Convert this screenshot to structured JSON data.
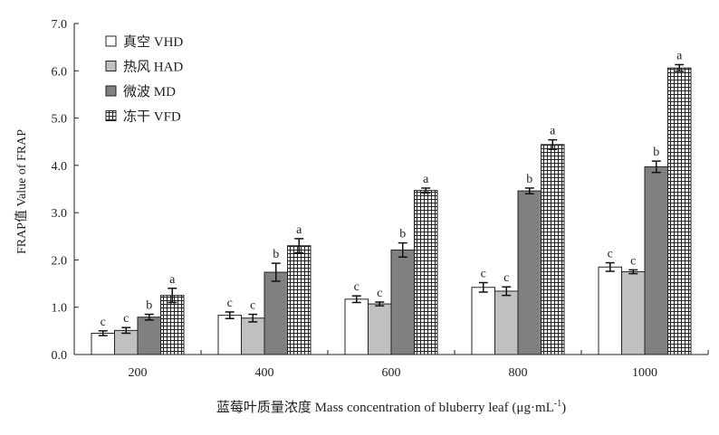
{
  "chart_data": {
    "type": "bar",
    "ylabel": "FRAP值 Value of FRAP",
    "xlabel": "蓝莓叶质量浓度 Mass concentration of bluberry leaf (μg·mL",
    "xlabel_sup": "-1",
    "xlabel_end": ")",
    "categories": [
      "200",
      "400",
      "600",
      "800",
      "1000"
    ],
    "ylim": [
      0,
      7
    ],
    "yticks": [
      "0.0",
      "1.0",
      "2.0",
      "3.0",
      "4.0",
      "5.0",
      "6.0",
      "7.0"
    ],
    "legend_position": "top-left",
    "grid": false,
    "series": [
      {
        "name": "真空 VHD",
        "pattern": "white",
        "values": [
          0.45,
          0.83,
          1.17,
          1.42,
          1.85
        ],
        "errors": [
          0.05,
          0.07,
          0.07,
          0.1,
          0.09
        ],
        "labels": [
          "c",
          "c",
          "c",
          "c",
          "c"
        ]
      },
      {
        "name": "热风 HAD",
        "pattern": "lightgray",
        "values": [
          0.51,
          0.77,
          1.07,
          1.34,
          1.75
        ],
        "errors": [
          0.06,
          0.08,
          0.04,
          0.09,
          0.04
        ],
        "labels": [
          "c",
          "c",
          "c",
          "c",
          "c"
        ]
      },
      {
        "name": "微波 MD",
        "pattern": "darkgray",
        "values": [
          0.79,
          1.74,
          2.21,
          3.46,
          3.97
        ],
        "errors": [
          0.06,
          0.19,
          0.15,
          0.06,
          0.12
        ],
        "labels": [
          "b",
          "b",
          "b",
          "b",
          "b"
        ]
      },
      {
        "name": "冻干 VFD",
        "pattern": "grid",
        "values": [
          1.25,
          2.3,
          3.47,
          4.44,
          6.06
        ],
        "errors": [
          0.15,
          0.15,
          0.05,
          0.1,
          0.07
        ],
        "labels": [
          "a",
          "a",
          "a",
          "a",
          "a"
        ]
      }
    ]
  }
}
